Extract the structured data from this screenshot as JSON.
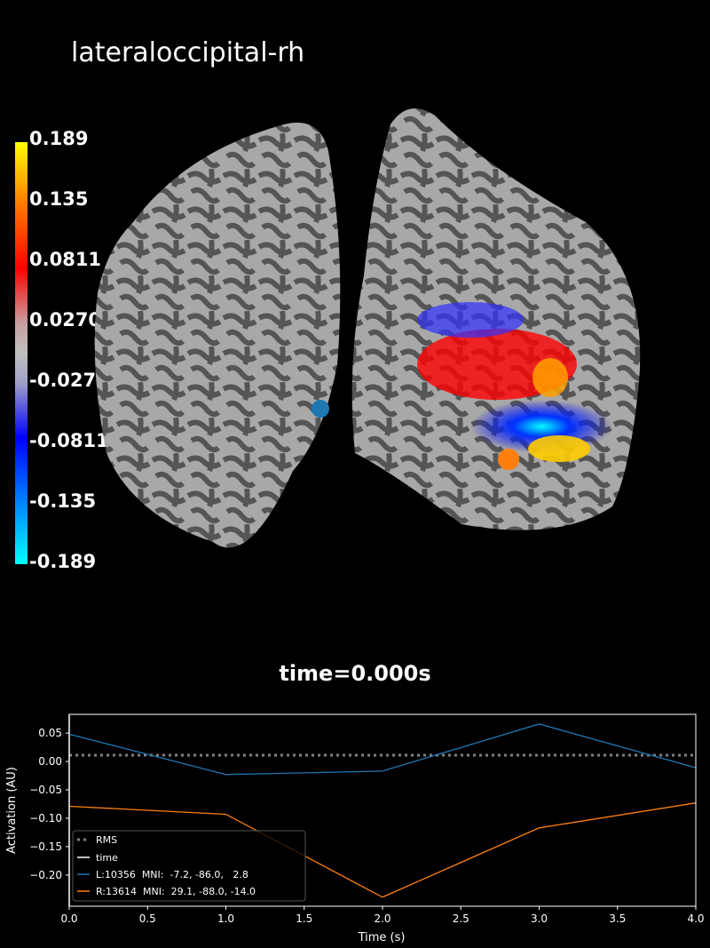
{
  "title": "lateraloccipital-rh",
  "colorbar": {
    "labels": [
      "0.189",
      "0.135",
      "0.0811",
      "0.0270",
      "-0.0270",
      "-0.0811",
      "-0.135",
      "-0.189"
    ],
    "colormap": [
      "#00ffff",
      "#0000ff",
      "#c0c0c0",
      "#ff0000",
      "#ffff00"
    ]
  },
  "time_label": "time=0.000s",
  "chart_data": {
    "type": "line",
    "xlabel": "Time (s)",
    "ylabel": "Activation (AU)",
    "xlim": [
      0,
      4
    ],
    "ylim": [
      -0.255,
      0.083
    ],
    "xticks": [
      "0.0",
      "0.5",
      "1.0",
      "1.5",
      "2.0",
      "2.5",
      "3.0",
      "3.5",
      "4.0"
    ],
    "yticks": [
      "0.05",
      "0.00",
      "−0.05",
      "−0.10",
      "−0.15",
      "−0.20"
    ],
    "legend_position": "lower-left",
    "x": [
      0,
      1,
      2,
      3,
      4
    ],
    "rms": {
      "name": "RMS",
      "value": 0.011,
      "color": "#808080"
    },
    "time_line": {
      "name": "time",
      "value": 0.0,
      "color": "#ffffff"
    },
    "series": [
      {
        "name": "L:10356  MNI:  -7.2, -86.0,   2.8",
        "color": "#1f77b4",
        "values": [
          0.048,
          -0.023,
          -0.017,
          0.066,
          -0.011
        ]
      },
      {
        "name": "R:13614  MNI:  29.1, -88.0, -14.0",
        "color": "#ff7f0e",
        "values": [
          -0.079,
          -0.093,
          -0.239,
          -0.117,
          -0.073
        ]
      }
    ]
  }
}
